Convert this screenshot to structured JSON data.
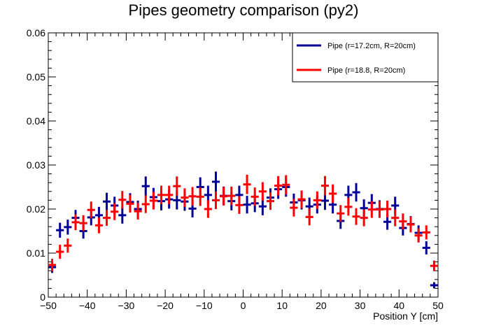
{
  "chart_data": {
    "type": "scatter",
    "title": "Pipes geometry comparison (py2)",
    "xlabel": "Position Y [cm]",
    "ylabel": "",
    "xlim": [
      -50,
      50
    ],
    "ylim": [
      0,
      0.06
    ],
    "x_ticks": [
      -50,
      -40,
      -30,
      -20,
      -10,
      0,
      10,
      20,
      30,
      40,
      50
    ],
    "x_tick_labels": [
      "−50",
      "−40",
      "−30",
      "−20",
      "−10",
      "0",
      "10",
      "20",
      "30",
      "40",
      "50"
    ],
    "y_ticks": [
      0,
      0.01,
      0.02,
      0.03,
      0.04,
      0.05,
      0.06
    ],
    "y_tick_labels": [
      "0",
      "0.01",
      "0.02",
      "0.03",
      "0.04",
      "0.05",
      "0.06"
    ],
    "bin_width": 2,
    "grid": false,
    "legend_position": "top-right",
    "x": [
      -49,
      -47,
      -45,
      -43,
      -41,
      -39,
      -37,
      -35,
      -33,
      -31,
      -29,
      -27,
      -25,
      -23,
      -21,
      -19,
      -17,
      -15,
      -13,
      -11,
      -9,
      -7,
      -5,
      -3,
      -1,
      1,
      3,
      5,
      7,
      9,
      11,
      13,
      15,
      17,
      19,
      21,
      23,
      25,
      27,
      29,
      31,
      33,
      35,
      37,
      39,
      41,
      43,
      45,
      47,
      49
    ],
    "series": [
      {
        "name": "Pipe (r=17.2cm, R=20cm)",
        "color": "#000099",
        "values": [
          0.0068,
          0.0152,
          0.0159,
          0.018,
          0.015,
          0.0181,
          0.0186,
          0.0217,
          0.0208,
          0.0186,
          0.0216,
          0.02,
          0.0252,
          0.0227,
          0.0218,
          0.0222,
          0.022,
          0.0217,
          0.0201,
          0.025,
          0.0232,
          0.0262,
          0.023,
          0.0218,
          0.0232,
          0.021,
          0.0213,
          0.0206,
          0.0226,
          0.0245,
          0.025,
          0.0215,
          0.022,
          0.0206,
          0.021,
          0.0219,
          0.021,
          0.0173,
          0.0232,
          0.0238,
          0.0202,
          0.0214,
          0.02,
          0.0171,
          0.0208,
          0.0157,
          0.0166,
          0.0146,
          0.0112,
          0.0027
        ],
        "errors": [
          0.0013,
          0.0017,
          0.0017,
          0.0018,
          0.0017,
          0.0018,
          0.0019,
          0.002,
          0.002,
          0.0019,
          0.002,
          0.0019,
          0.0022,
          0.0021,
          0.0021,
          0.0021,
          0.0021,
          0.0021,
          0.002,
          0.0022,
          0.0021,
          0.0023,
          0.0021,
          0.0021,
          0.0021,
          0.002,
          0.002,
          0.002,
          0.0021,
          0.0022,
          0.0022,
          0.002,
          0.0021,
          0.002,
          0.002,
          0.0021,
          0.002,
          0.0018,
          0.0021,
          0.0021,
          0.002,
          0.002,
          0.002,
          0.0018,
          0.002,
          0.0017,
          0.0018,
          0.0017,
          0.0015,
          0.0007
        ]
      },
      {
        "name": "Pipe (r=18.8, R=20cm)",
        "color": "#ff0000",
        "values": [
          0.0073,
          0.0103,
          0.0117,
          0.017,
          0.0168,
          0.0198,
          0.0163,
          0.018,
          0.0194,
          0.0221,
          0.0212,
          0.0195,
          0.0211,
          0.0219,
          0.0232,
          0.0232,
          0.0252,
          0.0226,
          0.0229,
          0.0228,
          0.02,
          0.022,
          0.0229,
          0.023,
          0.0209,
          0.0256,
          0.0228,
          0.024,
          0.0218,
          0.0253,
          0.0255,
          0.0203,
          0.0222,
          0.0182,
          0.022,
          0.0253,
          0.0235,
          0.019,
          0.0205,
          0.0183,
          0.018,
          0.0199,
          0.0199,
          0.02,
          0.018,
          0.0172,
          0.0165,
          0.014,
          0.0147,
          0.0071
        ],
        "errors": [
          0.0014,
          0.0016,
          0.0016,
          0.0018,
          0.0018,
          0.0019,
          0.0018,
          0.0018,
          0.0019,
          0.002,
          0.002,
          0.0019,
          0.002,
          0.002,
          0.0021,
          0.0021,
          0.0022,
          0.0021,
          0.0021,
          0.0021,
          0.002,
          0.002,
          0.0021,
          0.0021,
          0.002,
          0.0022,
          0.0021,
          0.0021,
          0.002,
          0.0022,
          0.0022,
          0.002,
          0.002,
          0.0019,
          0.002,
          0.0022,
          0.0021,
          0.0019,
          0.002,
          0.0019,
          0.0019,
          0.0019,
          0.0019,
          0.0019,
          0.0019,
          0.0018,
          0.0018,
          0.0016,
          0.0016,
          0.0012
        ]
      }
    ]
  }
}
